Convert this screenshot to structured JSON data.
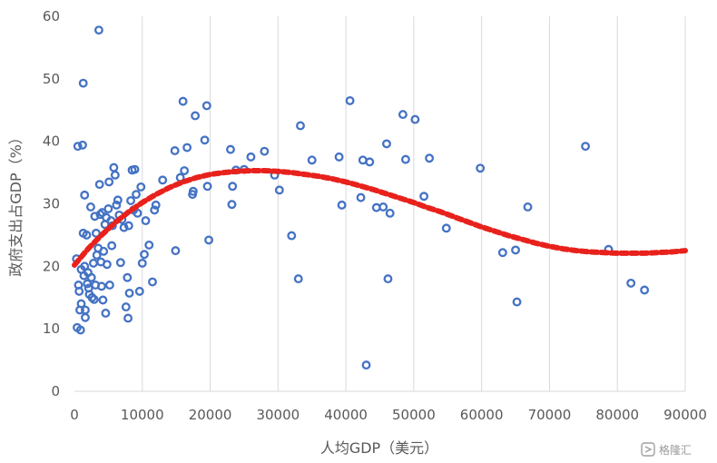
{
  "chart_data": {
    "type": "scatter",
    "title": "",
    "xlabel": "人均GDP（美元）",
    "ylabel": "政府支出占GDP（%）",
    "xlim": [
      0,
      90000
    ],
    "ylim": [
      0,
      60
    ],
    "x_ticks": [
      "0",
      "10000",
      "20000",
      "30000",
      "40000",
      "50000",
      "60000",
      "70000",
      "80000",
      "90000"
    ],
    "y_ticks": [
      "0",
      "10",
      "20",
      "30",
      "40",
      "50",
      "60"
    ],
    "grid": "vertical",
    "legend": "none",
    "colors": {
      "points": "#4472C4",
      "trend": "#E8211C",
      "grid": "#d9d9d9",
      "text": "#595959"
    },
    "series": [
      {
        "type": "scatter",
        "points": [
          [
            300,
            21.2
          ],
          [
            400,
            10.2
          ],
          [
            500,
            39.2
          ],
          [
            600,
            17.0
          ],
          [
            700,
            16.0
          ],
          [
            800,
            13.0
          ],
          [
            900,
            9.8
          ],
          [
            1000,
            19.5
          ],
          [
            1000,
            14.0
          ],
          [
            1200,
            39.4
          ],
          [
            1300,
            49.3
          ],
          [
            1300,
            25.3
          ],
          [
            1400,
            18.5
          ],
          [
            1500,
            31.4
          ],
          [
            1500,
            20.0
          ],
          [
            1600,
            13.0
          ],
          [
            1600,
            11.8
          ],
          [
            1800,
            25.0
          ],
          [
            1900,
            17.2
          ],
          [
            2000,
            19.0
          ],
          [
            2100,
            16.5
          ],
          [
            2200,
            15.5
          ],
          [
            2400,
            29.5
          ],
          [
            2500,
            18.2
          ],
          [
            2600,
            15.0
          ],
          [
            2800,
            20.5
          ],
          [
            2900,
            14.7
          ],
          [
            3000,
            28.0
          ],
          [
            3100,
            17.0
          ],
          [
            3200,
            25.3
          ],
          [
            3300,
            21.8
          ],
          [
            3500,
            22.9
          ],
          [
            3600,
            57.8
          ],
          [
            3700,
            33.1
          ],
          [
            3800,
            28.3
          ],
          [
            3900,
            20.7
          ],
          [
            4000,
            16.8
          ],
          [
            4100,
            28.6
          ],
          [
            4200,
            14.6
          ],
          [
            4300,
            22.4
          ],
          [
            4500,
            26.7
          ],
          [
            4600,
            12.5
          ],
          [
            4700,
            27.8
          ],
          [
            4800,
            20.3
          ],
          [
            5000,
            29.2
          ],
          [
            5100,
            33.5
          ],
          [
            5200,
            17.0
          ],
          [
            5400,
            27.3
          ],
          [
            5500,
            23.3
          ],
          [
            5600,
            26.5
          ],
          [
            5800,
            35.8
          ],
          [
            6000,
            34.6
          ],
          [
            6200,
            29.8
          ],
          [
            6400,
            30.6
          ],
          [
            6600,
            28.2
          ],
          [
            6800,
            20.6
          ],
          [
            7000,
            27.5
          ],
          [
            7300,
            26.2
          ],
          [
            7600,
            13.5
          ],
          [
            7800,
            18.2
          ],
          [
            7900,
            11.7
          ],
          [
            8000,
            26.5
          ],
          [
            8100,
            15.7
          ],
          [
            8300,
            30.5
          ],
          [
            8500,
            35.4
          ],
          [
            8700,
            29.0
          ],
          [
            8900,
            35.5
          ],
          [
            9100,
            31.5
          ],
          [
            9300,
            28.5
          ],
          [
            9600,
            16.0
          ],
          [
            9800,
            32.7
          ],
          [
            10000,
            20.5
          ],
          [
            10300,
            21.9
          ],
          [
            10500,
            27.3
          ],
          [
            11000,
            23.4
          ],
          [
            11500,
            17.5
          ],
          [
            11800,
            29.0
          ],
          [
            12000,
            29.8
          ],
          [
            13000,
            33.8
          ],
          [
            14800,
            38.5
          ],
          [
            14900,
            22.5
          ],
          [
            15600,
            34.2
          ],
          [
            16000,
            46.4
          ],
          [
            16200,
            35.3
          ],
          [
            16600,
            39.0
          ],
          [
            17400,
            31.5
          ],
          [
            17500,
            32.0
          ],
          [
            17800,
            44.1
          ],
          [
            19200,
            40.2
          ],
          [
            19500,
            45.7
          ],
          [
            19600,
            32.8
          ],
          [
            19800,
            24.2
          ],
          [
            23000,
            38.7
          ],
          [
            23200,
            29.9
          ],
          [
            23300,
            32.8
          ],
          [
            23800,
            35.4
          ],
          [
            25000,
            35.5
          ],
          [
            26000,
            37.5
          ],
          [
            28000,
            38.4
          ],
          [
            29500,
            34.6
          ],
          [
            30200,
            32.2
          ],
          [
            32000,
            24.9
          ],
          [
            33000,
            18.0
          ],
          [
            33300,
            42.5
          ],
          [
            35000,
            37.0
          ],
          [
            39000,
            37.5
          ],
          [
            39400,
            29.8
          ],
          [
            40600,
            46.5
          ],
          [
            42200,
            31.0
          ],
          [
            42500,
            37.0
          ],
          [
            43000,
            4.2
          ],
          [
            43500,
            36.7
          ],
          [
            44500,
            29.4
          ],
          [
            45500,
            29.5
          ],
          [
            46000,
            39.6
          ],
          [
            46200,
            18.0
          ],
          [
            46500,
            28.5
          ],
          [
            48400,
            44.3
          ],
          [
            48800,
            37.1
          ],
          [
            50200,
            43.5
          ],
          [
            51500,
            31.2
          ],
          [
            52300,
            37.3
          ],
          [
            54800,
            26.1
          ],
          [
            59800,
            35.7
          ],
          [
            63100,
            22.2
          ],
          [
            65000,
            22.6
          ],
          [
            65200,
            14.3
          ],
          [
            66800,
            29.5
          ],
          [
            75300,
            39.2
          ],
          [
            78700,
            22.7
          ],
          [
            82000,
            17.3
          ],
          [
            84000,
            16.2
          ]
        ]
      },
      {
        "type": "trend",
        "x": [
          0,
          2000,
          4000,
          6000,
          8000,
          10000,
          12000,
          14000,
          16000,
          18000,
          20000,
          22000,
          24000,
          26000,
          28000,
          30000,
          32000,
          34000,
          36000,
          38000,
          40000,
          42000,
          44000,
          46000,
          48000,
          50000,
          52000,
          54000,
          56000,
          58000,
          60000,
          62000,
          64000,
          66000,
          68000,
          70000,
          72000,
          74000,
          76000,
          78000,
          80000,
          82000,
          84000,
          86000,
          88000,
          90000
        ],
        "values": [
          20.2,
          22.8,
          25.0,
          27.0,
          28.7,
          30.2,
          31.5,
          32.6,
          33.5,
          34.2,
          34.7,
          35.0,
          35.2,
          35.3,
          35.3,
          35.2,
          35.0,
          34.7,
          34.4,
          34.0,
          33.5,
          32.9,
          32.3,
          31.6,
          30.9,
          30.2,
          29.4,
          28.7,
          27.9,
          27.1,
          26.3,
          25.6,
          24.9,
          24.3,
          23.7,
          23.2,
          22.8,
          22.5,
          22.3,
          22.2,
          22.1,
          22.1,
          22.1,
          22.2,
          22.3,
          22.5
        ]
      }
    ]
  },
  "watermark": {
    "text": "格隆汇"
  }
}
